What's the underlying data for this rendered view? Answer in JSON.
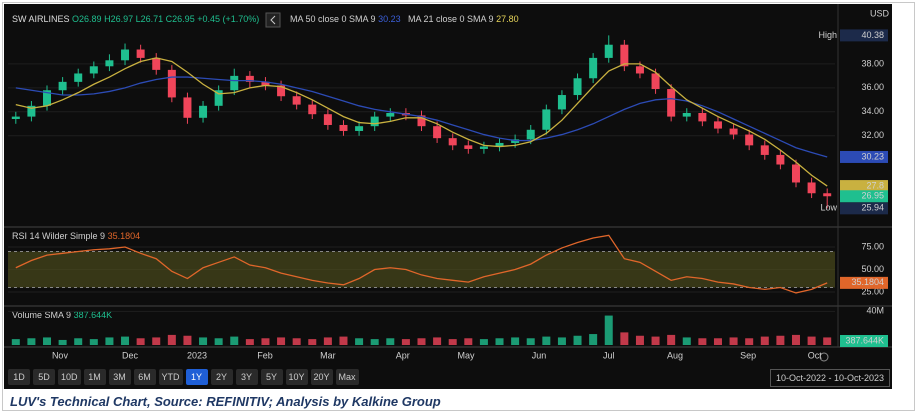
{
  "legend": {
    "symbol": "SW AIRLINES",
    "open": "O26.89",
    "high": "H26.97",
    "low": "L26.71",
    "close": "C26.95",
    "change": "+0.45 (+1.70%)",
    "ma50": "MA 50 close 0 SMA 9",
    "ma50_value": "30.23",
    "ma21": "MA 21 close 0 SMA 9",
    "ma21_value": "27.80",
    "currency": "USD",
    "high_tag": "High",
    "low_tag": "Low"
  },
  "chart_data": [
    {
      "type": "candlestick",
      "name": "SW AIRLINES",
      "x": [
        0,
        1,
        2,
        3,
        4,
        5,
        6,
        7,
        8,
        9,
        10,
        11,
        12,
        13,
        14,
        15,
        16,
        17,
        18,
        19,
        20,
        21,
        22,
        23,
        24,
        25,
        26,
        27,
        28,
        29,
        30,
        31,
        32,
        33,
        34,
        35,
        36,
        37,
        38,
        39,
        40,
        41,
        42,
        43,
        44,
        45,
        46,
        47,
        48,
        49,
        50,
        51,
        52
      ],
      "xlim": [
        -0.5,
        52.5
      ],
      "xticks": [
        {
          "value": 2.83,
          "label": "Nov"
        },
        {
          "value": 7.32,
          "label": "Dec"
        },
        {
          "value": 11.61,
          "label": "2023"
        },
        {
          "value": 15.97,
          "label": "Feb"
        },
        {
          "value": 20.0,
          "label": "Mar"
        },
        {
          "value": 24.8,
          "label": "Apr"
        },
        {
          "value": 28.85,
          "label": "May"
        },
        {
          "value": 33.53,
          "label": "Jun"
        },
        {
          "value": 38.0,
          "label": "Jul"
        },
        {
          "value": 42.25,
          "label": "Aug"
        },
        {
          "value": 46.93,
          "label": "Sep"
        },
        {
          "value": 51.2,
          "label": "Oct"
        }
      ],
      "ylim": [
        24.55,
        43.0
      ],
      "yticks": [
        {
          "value": 32,
          "label": "32.00"
        },
        {
          "value": 34,
          "label": "34.00"
        },
        {
          "value": 36,
          "label": "36.00"
        },
        {
          "value": 38,
          "label": "38.00"
        }
      ],
      "opens": [
        33.4,
        33.6,
        34.5,
        35.8,
        36.5,
        37.2,
        37.8,
        38.3,
        39.2,
        38.5,
        37.5,
        35.2,
        33.5,
        34.5,
        35.8,
        37.0,
        36.5,
        36.2,
        35.3,
        34.6,
        33.8,
        32.9,
        32.4,
        32.8,
        33.6,
        33.9,
        33.7,
        32.8,
        31.8,
        31.2,
        30.9,
        31.1,
        31.4,
        31.7,
        32.5,
        34.2,
        35.4,
        36.8,
        38.5,
        39.6,
        37.8,
        37.2,
        35.9,
        33.6,
        33.9,
        33.2,
        32.6,
        32.1,
        31.2,
        30.4,
        29.6,
        28.1,
        27.2
      ],
      "highs": [
        34.0,
        34.9,
        36.2,
        36.9,
        37.6,
        38.2,
        38.8,
        39.7,
        39.6,
        38.9,
        37.9,
        35.6,
        34.9,
        36.2,
        37.6,
        37.4,
        36.9,
        36.6,
        35.7,
        35.0,
        34.2,
        33.3,
        33.2,
        34.0,
        34.3,
        34.3,
        34.1,
        33.2,
        32.2,
        31.6,
        31.5,
        31.8,
        32.1,
        32.9,
        34.6,
        35.8,
        37.2,
        38.9,
        40.38,
        40.0,
        38.2,
        37.6,
        36.3,
        34.3,
        34.3,
        33.6,
        33.0,
        32.5,
        31.6,
        30.8,
        30.0,
        28.5,
        27.6
      ],
      "lows": [
        33.0,
        33.2,
        34.1,
        35.4,
        36.1,
        36.8,
        37.4,
        37.9,
        38.1,
        37.1,
        34.8,
        33.0,
        33.1,
        34.1,
        35.4,
        36.0,
        35.8,
        34.9,
        34.2,
        33.4,
        32.5,
        32.0,
        32.0,
        32.4,
        33.2,
        33.3,
        32.4,
        31.4,
        30.8,
        30.5,
        30.5,
        30.7,
        31.0,
        31.3,
        32.1,
        33.8,
        35.0,
        36.4,
        38.1,
        37.4,
        36.8,
        35.5,
        33.2,
        33.2,
        32.8,
        32.2,
        31.7,
        30.8,
        30.0,
        29.2,
        27.7,
        26.8,
        25.94
      ],
      "closes": [
        33.6,
        34.5,
        35.8,
        36.5,
        37.2,
        37.8,
        38.3,
        39.2,
        38.5,
        37.5,
        35.2,
        33.5,
        34.5,
        35.8,
        37.0,
        36.5,
        36.2,
        35.3,
        34.6,
        33.8,
        32.9,
        32.4,
        32.8,
        33.6,
        33.9,
        33.7,
        32.8,
        31.8,
        31.2,
        30.9,
        31.1,
        31.4,
        31.7,
        32.5,
        34.2,
        35.4,
        36.8,
        38.5,
        39.6,
        37.8,
        37.2,
        35.9,
        33.6,
        33.9,
        33.2,
        32.6,
        32.1,
        31.2,
        30.4,
        29.6,
        28.1,
        27.2,
        26.95
      ],
      "up_color": "#1fbf8f",
      "down_color": "#f0455a",
      "series": [
        {
          "name": "MA 50",
          "color": "#2c4bb5",
          "values": [
            36.0,
            35.8,
            35.6,
            35.4,
            35.4,
            35.5,
            35.7,
            36.0,
            36.4,
            36.7,
            36.9,
            36.9,
            36.8,
            36.7,
            36.6,
            36.6,
            36.5,
            36.3,
            36.0,
            35.7,
            35.3,
            34.9,
            34.5,
            34.2,
            34.0,
            33.8,
            33.6,
            33.3,
            32.9,
            32.5,
            32.1,
            31.8,
            31.6,
            31.6,
            31.8,
            32.1,
            32.5,
            33.0,
            33.6,
            34.2,
            34.7,
            35.0,
            35.1,
            34.9,
            34.5,
            34.0,
            33.4,
            32.8,
            32.2,
            31.6,
            31.0,
            30.6,
            30.23
          ]
        },
        {
          "name": "MA 21",
          "color": "#c9b140",
          "values": [
            34.6,
            34.3,
            34.5,
            35.0,
            35.6,
            36.3,
            36.9,
            37.6,
            38.2,
            38.5,
            38.2,
            37.3,
            36.3,
            35.5,
            35.6,
            36.0,
            36.2,
            36.1,
            35.6,
            35.0,
            34.3,
            33.6,
            33.1,
            33.0,
            33.2,
            33.5,
            33.5,
            33.0,
            32.3,
            31.7,
            31.2,
            31.1,
            31.2,
            31.5,
            32.2,
            33.3,
            34.7,
            36.1,
            37.4,
            38.0,
            38.0,
            37.3,
            36.1,
            35.0,
            34.3,
            33.6,
            33.0,
            32.4,
            31.7,
            30.8,
            29.8,
            28.7,
            27.8
          ]
        }
      ]
    },
    {
      "type": "line",
      "title": "RSI 14 Wilder Simple 9",
      "value_text": "35.1804",
      "x": [
        0,
        1,
        2,
        3,
        4,
        5,
        6,
        7,
        8,
        9,
        10,
        11,
        12,
        13,
        14,
        15,
        16,
        17,
        18,
        19,
        20,
        21,
        22,
        23,
        24,
        25,
        26,
        27,
        28,
        29,
        30,
        31,
        32,
        33,
        34,
        35,
        36,
        37,
        38,
        39,
        40,
        41,
        42,
        43,
        44,
        45,
        46,
        47,
        48,
        49,
        50,
        51,
        52
      ],
      "xlim": [
        -0.5,
        52.5
      ],
      "ylim": [
        10.6,
        93.9
      ],
      "yticks": [
        {
          "value": 25,
          "label": "25.00"
        },
        {
          "value": 50,
          "label": "50.00"
        },
        {
          "value": 75,
          "label": "75.00"
        }
      ],
      "band": [
        30,
        70
      ],
      "band_color": "#4a4a1c",
      "series": [
        {
          "name": "RSI",
          "color": "#e0662a",
          "values": [
            52,
            60,
            66,
            68,
            70,
            72,
            73,
            75,
            68,
            62,
            48,
            40,
            52,
            58,
            64,
            55,
            52,
            46,
            42,
            38,
            35,
            33,
            40,
            50,
            52,
            50,
            44,
            40,
            38,
            36,
            42,
            46,
            50,
            56,
            66,
            74,
            80,
            85,
            88,
            62,
            58,
            48,
            38,
            42,
            40,
            36,
            34,
            30,
            28,
            30,
            24,
            28,
            35.1804
          ]
        }
      ]
    },
    {
      "type": "bar",
      "title": "Volume SMA 9",
      "value_text": "387.644K",
      "badge": "387.644K",
      "x": [
        0,
        1,
        2,
        3,
        4,
        5,
        6,
        7,
        8,
        9,
        10,
        11,
        12,
        13,
        14,
        15,
        16,
        17,
        18,
        19,
        20,
        21,
        22,
        23,
        24,
        25,
        26,
        27,
        28,
        29,
        30,
        31,
        32,
        33,
        34,
        35,
        36,
        37,
        38,
        39,
        40,
        41,
        42,
        43,
        44,
        45,
        46,
        47,
        48,
        49,
        50,
        51,
        52
      ],
      "xlim": [
        -0.5,
        52.5
      ],
      "ylim": [
        0,
        44
      ],
      "yticks": [
        {
          "value": 40,
          "label": "40M"
        }
      ],
      "values": [
        7,
        8,
        9,
        6,
        8,
        7,
        9,
        10,
        8,
        9,
        12,
        11,
        9,
        8,
        10,
        7,
        8,
        9,
        8,
        7,
        9,
        10,
        8,
        7,
        8,
        7,
        8,
        9,
        7,
        8,
        7,
        8,
        9,
        8,
        10,
        9,
        11,
        13,
        35,
        15,
        11,
        10,
        12,
        9,
        8,
        8,
        9,
        8,
        10,
        11,
        12,
        10,
        9
      ]
    }
  ],
  "toolbar": {
    "ranges": [
      "1D",
      "5D",
      "10D",
      "1M",
      "3M",
      "6M",
      "YTD",
      "1Y",
      "2Y",
      "3Y",
      "5Y",
      "10Y",
      "20Y",
      "Max"
    ],
    "date_range": "10-Oct-2022 - 10-Oct-2023"
  },
  "caption": "LUV's Technical Chart, Source: REFINITIV; Analysis by Kalkine Group"
}
